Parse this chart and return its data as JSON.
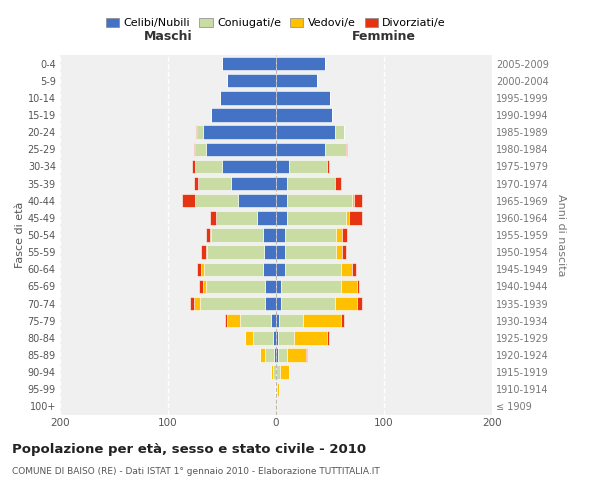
{
  "age_groups": [
    "100+",
    "95-99",
    "90-94",
    "85-89",
    "80-84",
    "75-79",
    "70-74",
    "65-69",
    "60-64",
    "55-59",
    "50-54",
    "45-49",
    "40-44",
    "35-39",
    "30-34",
    "25-29",
    "20-24",
    "15-19",
    "10-14",
    "5-9",
    "0-4"
  ],
  "birth_years": [
    "≤ 1909",
    "1910-1914",
    "1915-1919",
    "1920-1924",
    "1925-1929",
    "1930-1934",
    "1935-1939",
    "1940-1944",
    "1945-1949",
    "1950-1954",
    "1955-1959",
    "1960-1964",
    "1965-1969",
    "1970-1974",
    "1975-1979",
    "1980-1984",
    "1985-1989",
    "1990-1994",
    "1995-1999",
    "2000-2004",
    "2005-2009"
  ],
  "male": {
    "celibi": [
      0,
      0,
      0,
      2,
      3,
      5,
      10,
      10,
      12,
      11,
      12,
      18,
      35,
      42,
      50,
      65,
      68,
      60,
      52,
      45,
      50
    ],
    "coniugati": [
      0,
      1,
      3,
      8,
      18,
      28,
      60,
      55,
      55,
      53,
      48,
      38,
      40,
      30,
      25,
      10,
      5,
      0,
      0,
      0,
      0
    ],
    "vedovi": [
      0,
      0,
      2,
      5,
      8,
      12,
      6,
      3,
      2,
      1,
      1,
      0,
      0,
      0,
      0,
      0,
      0,
      0,
      0,
      0,
      0
    ],
    "divorziati": [
      0,
      0,
      0,
      0,
      0,
      2,
      4,
      3,
      4,
      4,
      4,
      5,
      12,
      4,
      3,
      1,
      1,
      0,
      0,
      0,
      0
    ]
  },
  "female": {
    "nubili": [
      0,
      0,
      0,
      2,
      2,
      3,
      5,
      5,
      8,
      8,
      8,
      10,
      10,
      10,
      12,
      45,
      55,
      52,
      50,
      38,
      45
    ],
    "coniugate": [
      0,
      1,
      4,
      8,
      15,
      22,
      50,
      55,
      52,
      48,
      48,
      55,
      60,
      45,
      35,
      20,
      8,
      0,
      0,
      0,
      0
    ],
    "vedove": [
      1,
      2,
      8,
      18,
      30,
      35,
      20,
      15,
      10,
      5,
      5,
      3,
      2,
      0,
      0,
      0,
      0,
      0,
      0,
      0,
      0
    ],
    "divorziate": [
      0,
      0,
      0,
      1,
      2,
      3,
      5,
      2,
      4,
      4,
      5,
      12,
      8,
      5,
      2,
      1,
      0,
      0,
      0,
      0,
      0
    ]
  },
  "colors": {
    "celibi": "#4472c4",
    "coniugati": "#c8dca4",
    "vedovi": "#ffc000",
    "divorziati": "#e63312"
  },
  "title": "Popolazione per età, sesso e stato civile - 2010",
  "subtitle": "COMUNE DI BAISO (RE) - Dati ISTAT 1° gennaio 2010 - Elaborazione TUTTITALIA.IT",
  "xlabel_left": "Maschi",
  "xlabel_right": "Femmine",
  "ylabel_left": "Fasce di età",
  "ylabel_right": "Anni di nascita",
  "xlim": 200,
  "legend_labels": [
    "Celibi/Nubili",
    "Coniugati/e",
    "Vedovi/e",
    "Divorziati/e"
  ],
  "background_color": "#f0f0f0"
}
